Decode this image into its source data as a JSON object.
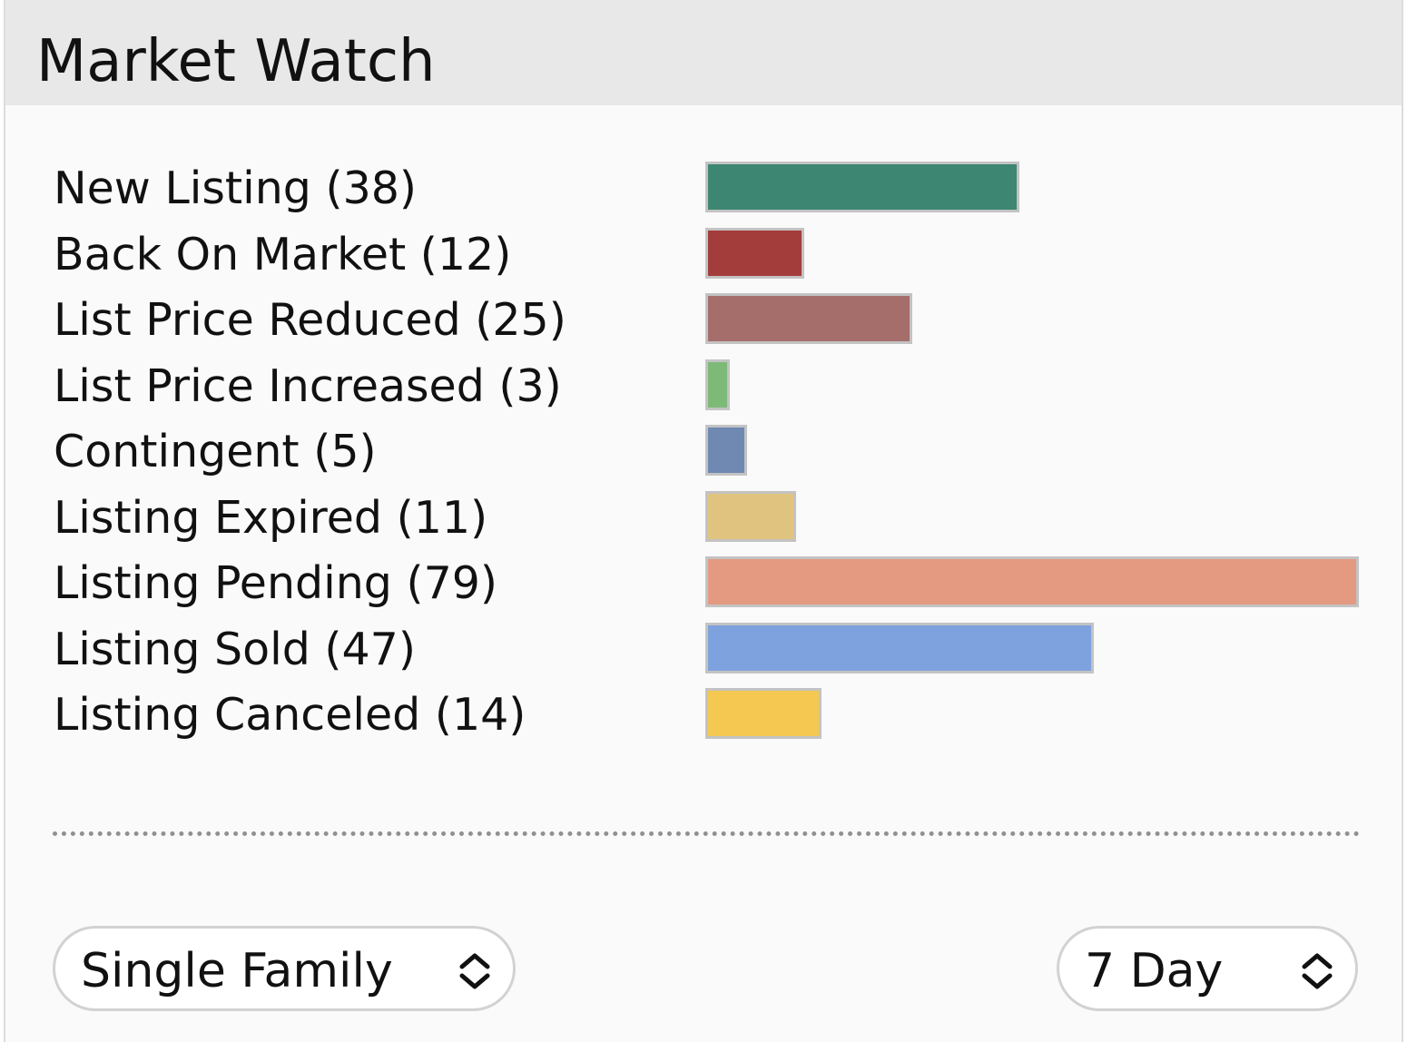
{
  "widget": {
    "title": "Market Watch"
  },
  "rows": [
    {
      "label": "New Listing (38)",
      "category": "New Listing",
      "count": 38,
      "color": "#3d8672"
    },
    {
      "label": "Back On Market (12)",
      "category": "Back On Market",
      "count": 12,
      "color": "#a33d3b"
    },
    {
      "label": "List Price Reduced (25)",
      "category": "List Price Reduced",
      "count": 25,
      "color": "#a66e6b"
    },
    {
      "label": "List Price Increased (3)",
      "category": "List Price Increased",
      "count": 3,
      "color": "#7dba78"
    },
    {
      "label": "Contingent (5)",
      "category": "Contingent",
      "count": 5,
      "color": "#6f89b3"
    },
    {
      "label": "Listing Expired (11)",
      "category": "Listing Expired",
      "count": 11,
      "color": "#e0c37e"
    },
    {
      "label": "Listing Pending (79)",
      "category": "Listing Pending",
      "count": 79,
      "color": "#e49a80"
    },
    {
      "label": "Listing Sold (47)",
      "category": "Listing Sold",
      "count": 47,
      "color": "#7ea2dd"
    },
    {
      "label": "Listing Canceled (14)",
      "category": "Listing Canceled",
      "count": 14,
      "color": "#f5c851"
    }
  ],
  "chart_data": {
    "type": "bar",
    "orientation": "horizontal",
    "categories": [
      "New Listing",
      "Back On Market",
      "List Price Reduced",
      "List Price Increased",
      "Contingent",
      "Listing Expired",
      "Listing Pending",
      "Listing Sold",
      "Listing Canceled"
    ],
    "values": [
      38,
      12,
      25,
      3,
      5,
      11,
      79,
      47,
      14
    ],
    "colors": [
      "#3d8672",
      "#a33d3b",
      "#a66e6b",
      "#7dba78",
      "#6f89b3",
      "#e0c37e",
      "#e49a80",
      "#7ea2dd",
      "#f5c851"
    ],
    "title": "",
    "xlabel": "",
    "ylabel": "",
    "grid": false
  },
  "filters": {
    "property_type": {
      "value": "Single Family",
      "icon": "up-down-chevron-icon"
    },
    "time_range": {
      "value": "7 Day",
      "icon": "up-down-chevron-icon"
    }
  }
}
